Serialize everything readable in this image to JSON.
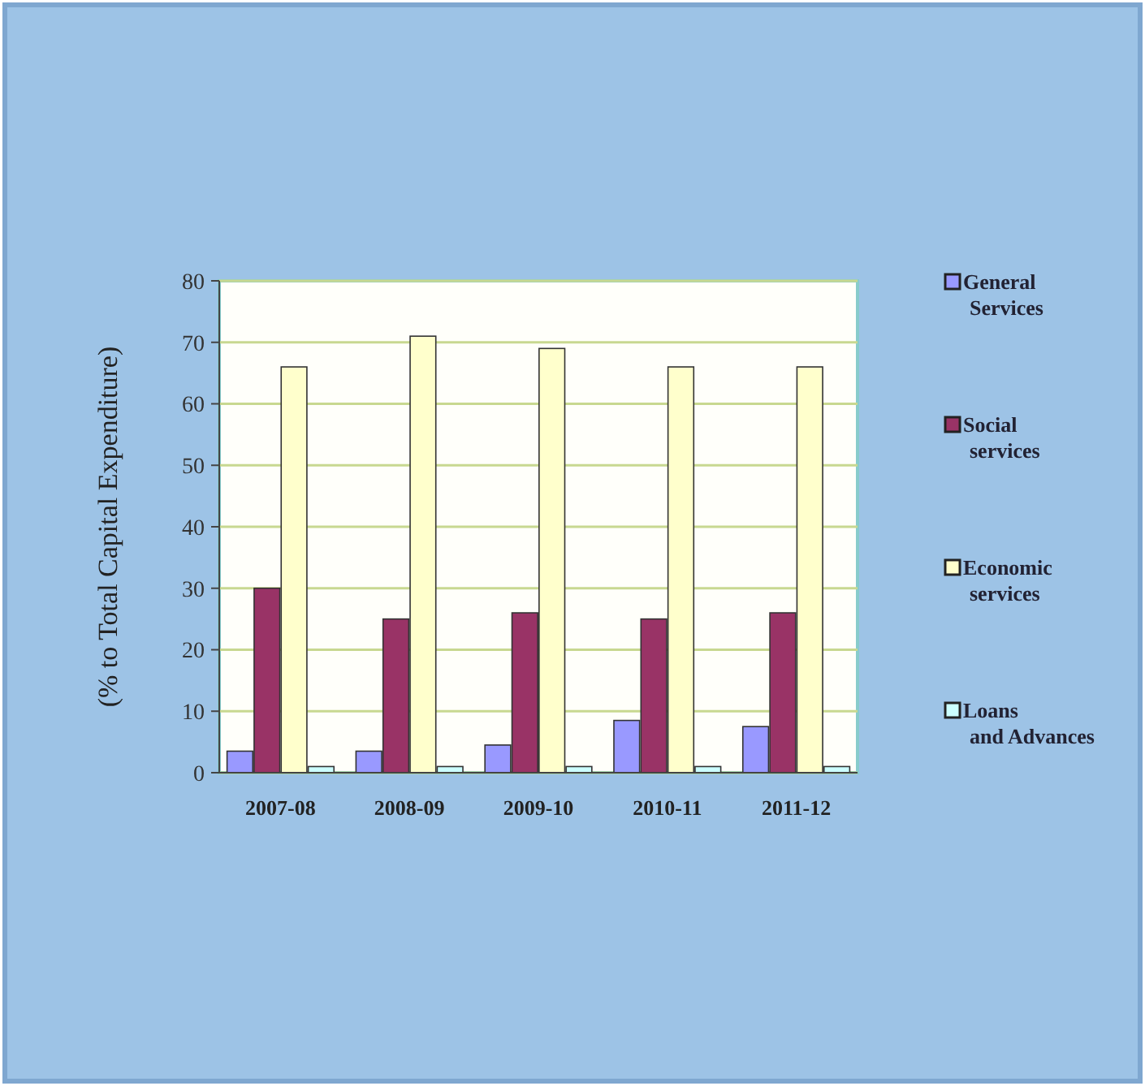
{
  "chart_data": {
    "type": "bar",
    "ylabel": "(% to Total Capital Expenditure)",
    "categories": [
      "2007-08",
      "2008-09",
      "2009-10",
      "2010-11",
      "2011-12"
    ],
    "series": [
      {
        "name": "General Services",
        "color": "#9999ff",
        "values": [
          3.5,
          3.5,
          4.5,
          8.5,
          7.5
        ]
      },
      {
        "name": "Social services",
        "color": "#993366",
        "values": [
          30,
          25,
          26,
          25,
          26
        ]
      },
      {
        "name": "Economic services",
        "color": "#ffffcc",
        "values": [
          66,
          71,
          69,
          66,
          66
        ]
      },
      {
        "name": "Loans and Advances",
        "color": "#ccffff",
        "values": [
          1,
          1,
          1,
          1,
          1
        ]
      }
    ],
    "ylim": [
      0,
      80
    ],
    "yticks": [
      0,
      10,
      20,
      30,
      40,
      50,
      60,
      70,
      80
    ],
    "grid": "y",
    "legend": "right"
  }
}
